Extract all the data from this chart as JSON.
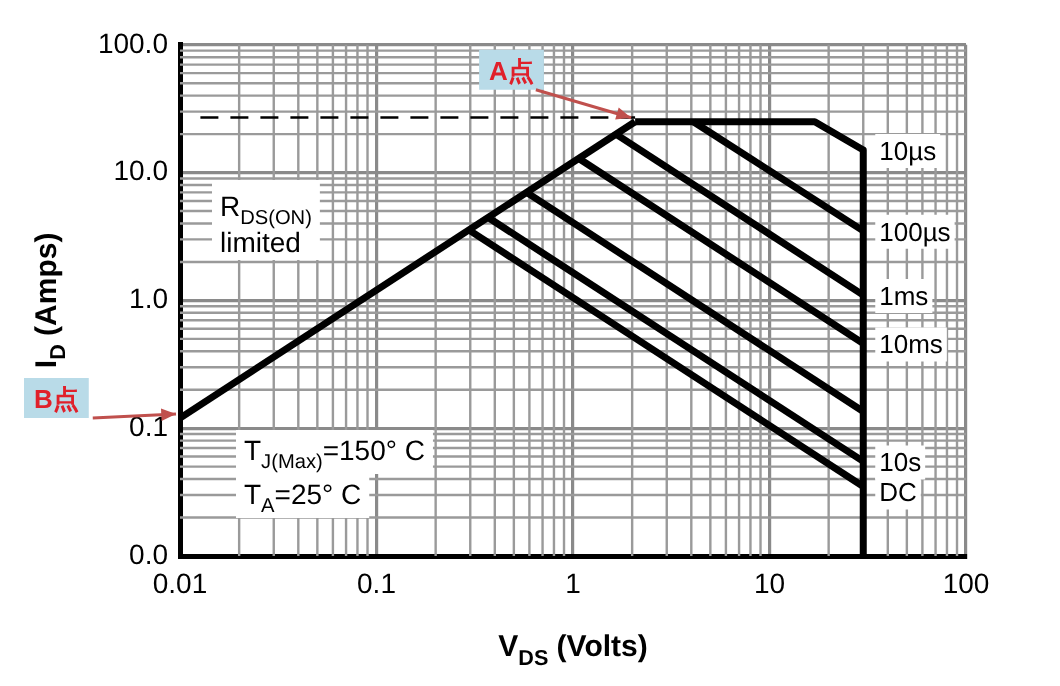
{
  "chart_data": {
    "type": "line",
    "xlabel": "V$_{DS}$ (Volts)",
    "ylabel": "I$_{D}$ (Amps)",
    "log": "xy",
    "grid": true,
    "legend": false,
    "marker": "none",
    "line_style": "solid",
    "xlim": [
      0.01,
      100
    ],
    "xticks": [
      0.01,
      0.1,
      1,
      10,
      100
    ],
    "ylim": [
      0.01,
      100
    ],
    "yticks": [
      {
        "value": 0.01,
        "label": "0.0"
      },
      0.1,
      {
        "value": 1,
        "label": "1.0"
      },
      {
        "value": 10,
        "label": "10.0"
      },
      {
        "value": 100,
        "label": "100.0"
      }
    ],
    "series": [
      {
        "color": "#000000",
        "x": [
          0.01,
          2.07
        ],
        "values": [
          0.12,
          25
        ]
      },
      {
        "color": "#000000",
        "x": [
          0.0127,
          2.07
        ],
        "values": [
          27,
          27
        ],
        "line_style": "dashed"
      },
      {
        "name": "10µs",
        "color": "#000000",
        "x": [
          2.07,
          17,
          30,
          30
        ],
        "values": [
          25,
          25,
          15,
          0.01
        ]
      },
      {
        "name": "100µs",
        "color": "#000000",
        "x": [
          4.1,
          30
        ],
        "values": [
          25,
          3.5
        ]
      },
      {
        "name": "1ms",
        "color": "#000000",
        "x": [
          1.66,
          30
        ],
        "values": [
          19.9,
          1.1
        ]
      },
      {
        "name": "10ms",
        "color": "#000000",
        "x": [
          1.07,
          30
        ],
        "values": [
          12.9,
          0.46
        ]
      },
      {
        "color": "#000000",
        "x": [
          0.58,
          30
        ],
        "values": [
          7,
          0.135
        ]
      },
      {
        "name": "10s",
        "color": "#000000",
        "x": [
          0.37,
          30
        ],
        "values": [
          4.45,
          0.055
        ]
      },
      {
        "name": "DC",
        "color": "#000000",
        "x": [
          0.3,
          30
        ],
        "values": [
          3.5,
          0.035
        ]
      }
    ],
    "annotations": [
      {
        "text": "A点",
        "x": 2.07,
        "y": 25
      },
      {
        "text": "B点",
        "x": 0.01,
        "y": 0.12
      },
      "R$_{DS(ON)}$ limited",
      "T$_{J(Max)}$=150° C",
      "T$_{A}$=25° C"
    ]
  }
}
